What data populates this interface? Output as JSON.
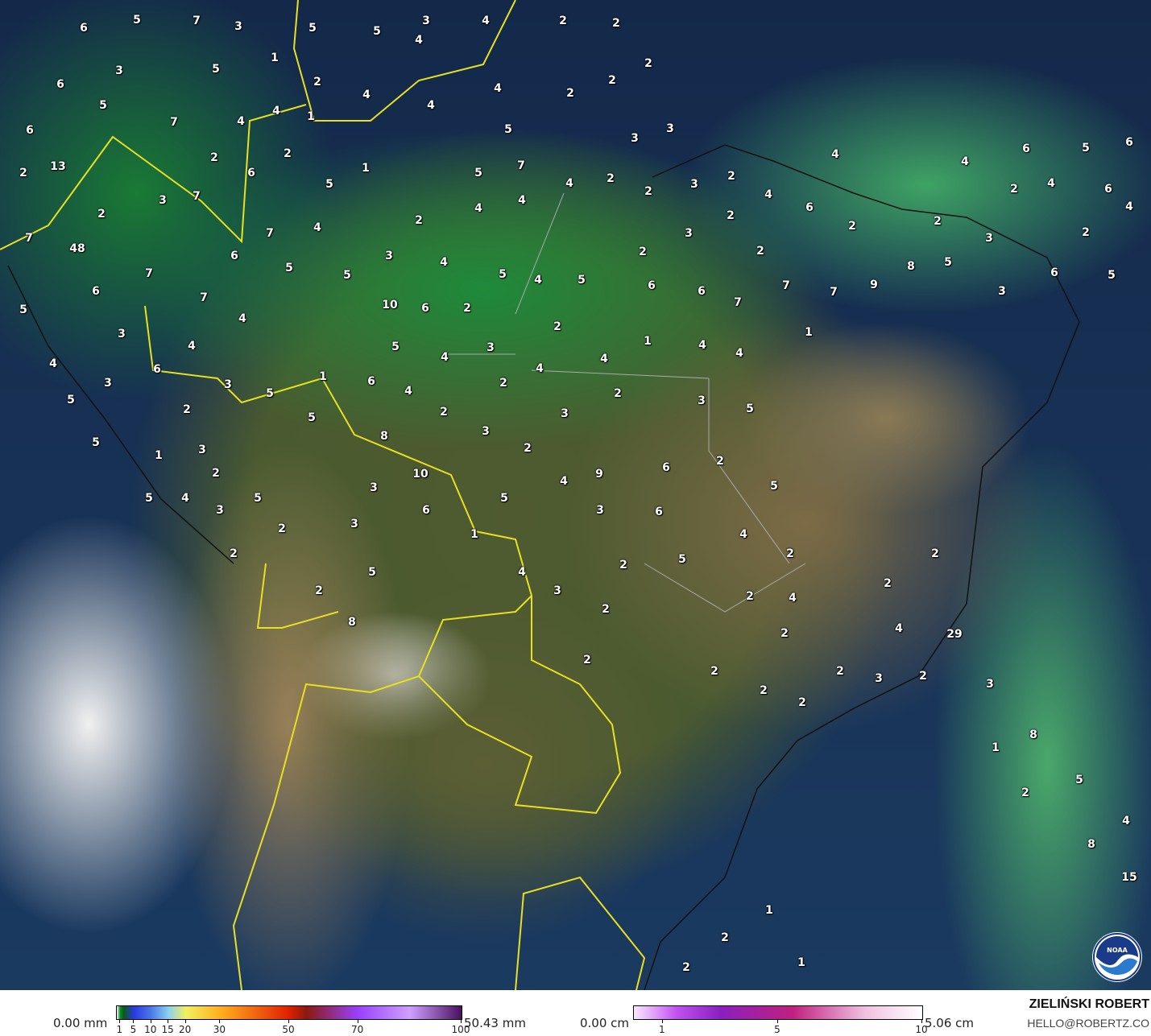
{
  "map": {
    "type": "precipitation accumulation",
    "basemap": "satellite",
    "value_labels": [
      6,
      5,
      7,
      3,
      5,
      5,
      3,
      4,
      4,
      2,
      2,
      1,
      5,
      3,
      6,
      5,
      2,
      4,
      1,
      4,
      4,
      4,
      2,
      2,
      2,
      7,
      4,
      6,
      5,
      3,
      3,
      13,
      2,
      2,
      2,
      6,
      1,
      5,
      5,
      7,
      4,
      2,
      2,
      3,
      2,
      4,
      4,
      6,
      5,
      6,
      2,
      4,
      6,
      4,
      2,
      5,
      3,
      7,
      2,
      4,
      6,
      2,
      2,
      4,
      4,
      7,
      48,
      7,
      4,
      3,
      2,
      2,
      3,
      6,
      3,
      4,
      2,
      2,
      8,
      5,
      6,
      7,
      5,
      5,
      5,
      4,
      5,
      6,
      6,
      7,
      7,
      9,
      3,
      6,
      7,
      10,
      6,
      2,
      7,
      5,
      4,
      3,
      1,
      1,
      4,
      3,
      4,
      4,
      2,
      4,
      5,
      4,
      4,
      6,
      4,
      1,
      3,
      3,
      6,
      4,
      2,
      5,
      2,
      3,
      5,
      2,
      5,
      2,
      3,
      5,
      3,
      8,
      5,
      3,
      2,
      1,
      2,
      2,
      10,
      9,
      6,
      4,
      5,
      3,
      5,
      4,
      3,
      5,
      6,
      5,
      3,
      6,
      2,
      3,
      4,
      1,
      2,
      2,
      2,
      5,
      4,
      2,
      5,
      2,
      3,
      2,
      2,
      4,
      2,
      8,
      4,
      29,
      2,
      2,
      2,
      2,
      3,
      2,
      3,
      2,
      2,
      8,
      1,
      5,
      2,
      4,
      8,
      15,
      1,
      2,
      1,
      2
    ],
    "logo": "NOAA"
  },
  "legend": {
    "rain": {
      "min_label": "0.00 mm",
      "max_label": "50.43 mm",
      "ticks": [
        "1",
        "5",
        "10",
        "15",
        "20",
        "30",
        "50",
        "70",
        "100"
      ],
      "colors": [
        "#0a8a2a",
        "#2a3ae0",
        "#8ad0f0",
        "#f0f060",
        "#ffb020",
        "#e02000",
        "#9a40ff",
        "#d0a0ff",
        "#4a1060"
      ]
    },
    "snow": {
      "min_label": "0.00 cm",
      "max_label": "5.06 cm",
      "ticks": [
        "1",
        "5",
        "10"
      ],
      "colors": [
        "#fbe8ff",
        "#8a20c0",
        "#c02080",
        "#ffffff"
      ]
    }
  },
  "credit": {
    "name": "ZIELIŃSKI ROBERT",
    "email": "HELLO@ROBERTZ.CO"
  }
}
